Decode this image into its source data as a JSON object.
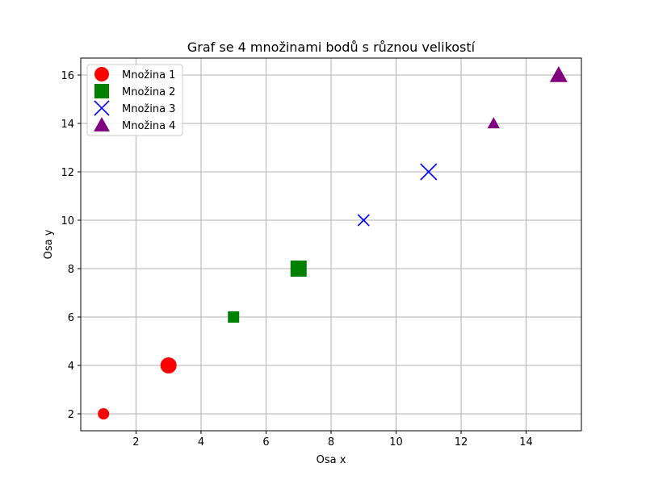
{
  "chart_data": {
    "type": "scatter",
    "title": "Graf se 4 množinami bodů s různou velikostí",
    "xlabel": "Osa x",
    "ylabel": "Osa y",
    "xlim": [
      0.3,
      15.7
    ],
    "ylim": [
      1.3,
      16.7
    ],
    "xticks": [
      2,
      4,
      6,
      8,
      10,
      12,
      14
    ],
    "yticks": [
      2,
      4,
      6,
      8,
      10,
      12,
      14,
      16
    ],
    "grid": true,
    "legend_position": "top-left",
    "series": [
      {
        "name": "Množina 1",
        "marker": "circle",
        "color": "#ff0000",
        "points": [
          {
            "x": 1,
            "y": 2,
            "size": "small"
          },
          {
            "x": 3,
            "y": 4,
            "size": "large"
          }
        ]
      },
      {
        "name": "Množina 2",
        "marker": "square",
        "color": "#008000",
        "points": [
          {
            "x": 5,
            "y": 6,
            "size": "small"
          },
          {
            "x": 7,
            "y": 8,
            "size": "large"
          }
        ]
      },
      {
        "name": "Množina 3",
        "marker": "x",
        "color": "#0000ff",
        "points": [
          {
            "x": 9,
            "y": 10,
            "size": "small"
          },
          {
            "x": 11,
            "y": 12,
            "size": "large"
          }
        ]
      },
      {
        "name": "Množina 4",
        "marker": "triangle",
        "color": "#800080",
        "points": [
          {
            "x": 13,
            "y": 14,
            "size": "small"
          },
          {
            "x": 15,
            "y": 16,
            "size": "large"
          }
        ]
      }
    ]
  }
}
